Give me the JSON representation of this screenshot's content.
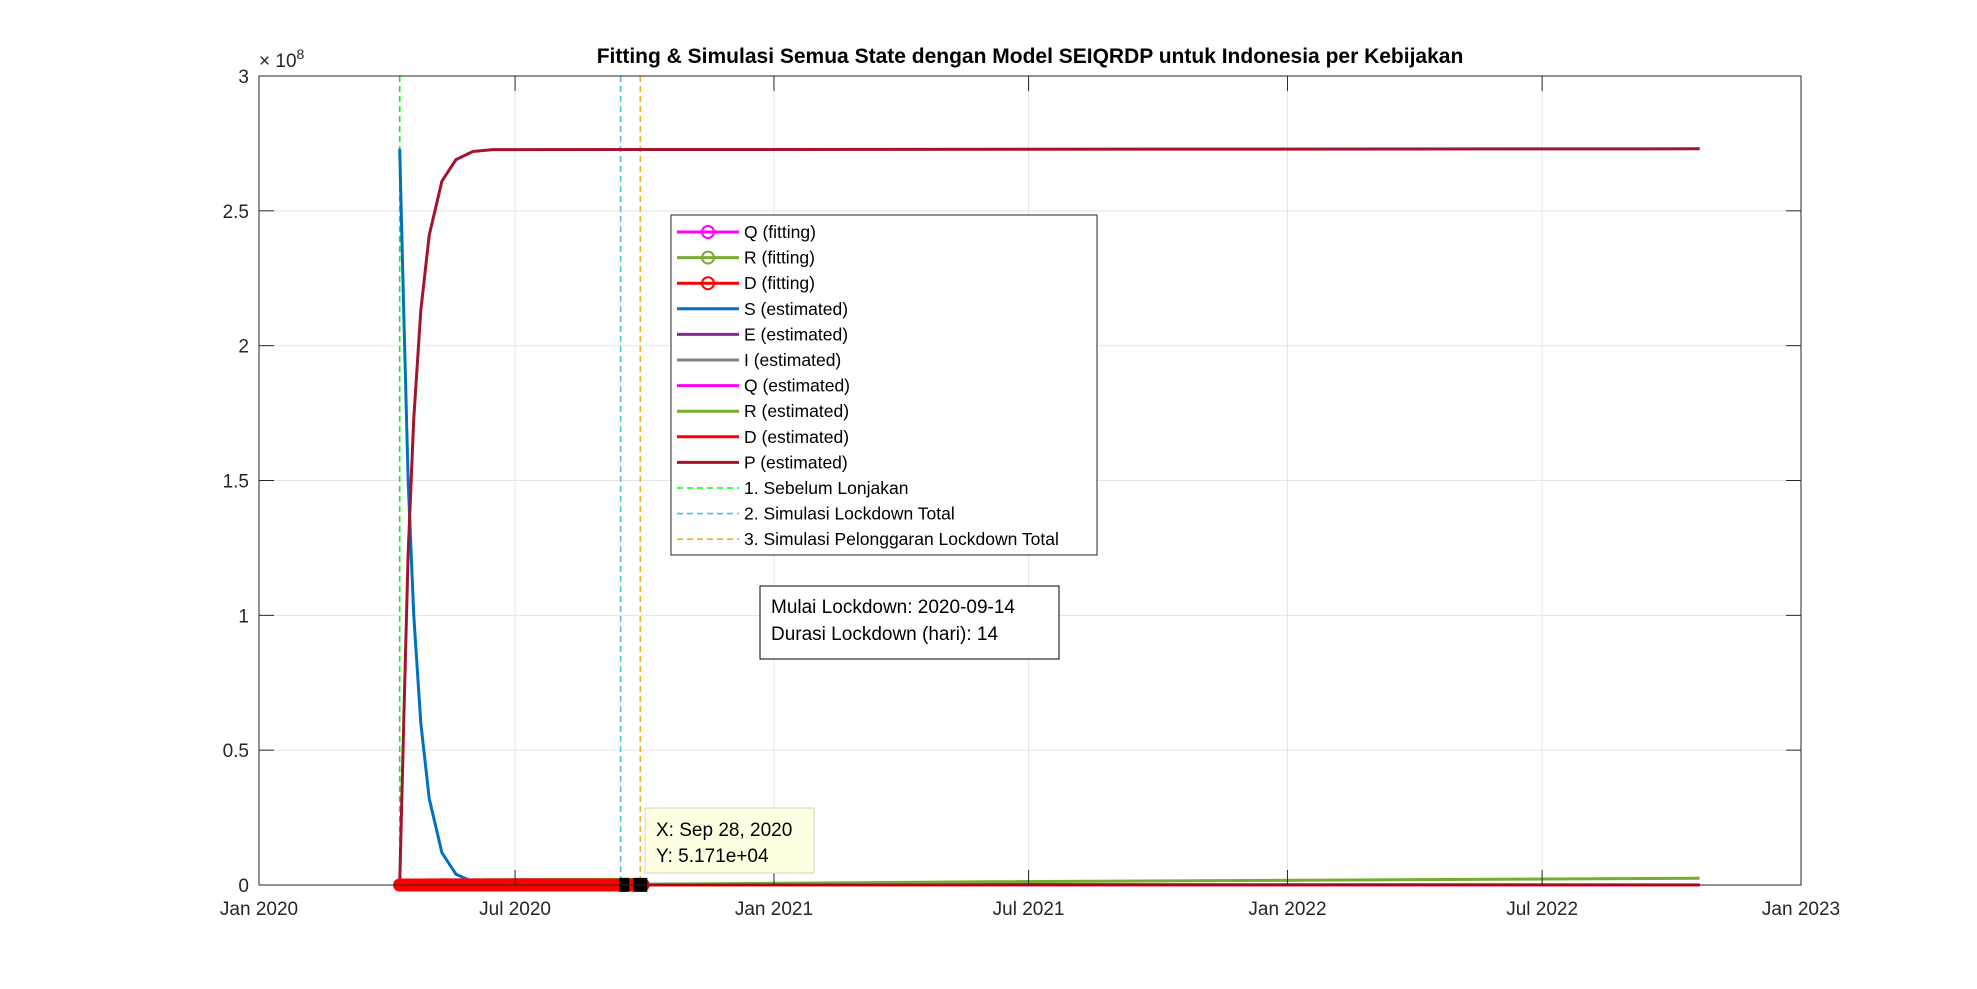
{
  "chart_data": {
    "type": "line",
    "title": "Fitting & Simulasi Semua State dengan Model SEIQRDP untuk Indonesia per Kebijakan",
    "xlabel": "",
    "ylabel": "",
    "x_axis": {
      "type": "date",
      "range": [
        "2020-01-01",
        "2023-01-01"
      ],
      "ticks": [
        "2020-01-01",
        "2020-07-01",
        "2021-01-01",
        "2021-07-01",
        "2022-01-01",
        "2022-07-01",
        "2023-01-01"
      ],
      "tick_labels": [
        "Jan 2020",
        "Jul 2020",
        "Jan 2021",
        "Jul 2021",
        "Jan 2022",
        "Jul 2022",
        "Jan 2023"
      ]
    },
    "y_axis": {
      "range": [
        0,
        300000000
      ],
      "exponent_label": "× 10",
      "exponent_power": "8",
      "ticks": [
        0,
        50000000,
        100000000,
        150000000,
        200000000,
        250000000,
        300000000
      ],
      "tick_labels": [
        "0",
        "0.5",
        "1",
        "1.5",
        "2",
        "2.5",
        "3"
      ]
    },
    "grid": true,
    "legend_position": "inside-center",
    "series": [
      {
        "name": "Q (fitting)",
        "color": "#ff00ff",
        "style": "line-marker",
        "points": [
          [
            "2020-04-10",
            0
          ],
          [
            "2020-09-30",
            150000
          ]
        ]
      },
      {
        "name": "R (fitting)",
        "color": "#77ac30",
        "style": "line-marker",
        "points": [
          [
            "2020-04-10",
            0
          ],
          [
            "2020-09-30",
            200000
          ]
        ]
      },
      {
        "name": "D (fitting)",
        "color": "#ff0000",
        "style": "line-marker",
        "points": [
          [
            "2020-04-10",
            0
          ],
          [
            "2020-09-30",
            10000
          ]
        ]
      },
      {
        "name": "S (estimated)",
        "color": "#0072bd",
        "style": "line",
        "points": [
          [
            "2020-04-10",
            273000000
          ],
          [
            "2020-04-13",
            210000000
          ],
          [
            "2020-04-16",
            150000000
          ],
          [
            "2020-04-20",
            100000000
          ],
          [
            "2020-04-25",
            60000000
          ],
          [
            "2020-05-01",
            32000000
          ],
          [
            "2020-05-10",
            12000000
          ],
          [
            "2020-05-20",
            4000000
          ],
          [
            "2020-06-01",
            1200000
          ],
          [
            "2020-06-15",
            300000
          ],
          [
            "2022-10-21",
            0
          ]
        ]
      },
      {
        "name": "E (estimated)",
        "color": "#7e2f8e",
        "style": "line",
        "points": [
          [
            "2020-04-10",
            0
          ],
          [
            "2022-10-21",
            0
          ]
        ]
      },
      {
        "name": "I (estimated)",
        "color": "#808080",
        "style": "line",
        "points": [
          [
            "2020-04-10",
            0
          ],
          [
            "2022-10-21",
            0
          ]
        ]
      },
      {
        "name": "Q (estimated)",
        "color": "#ff00ff",
        "style": "line",
        "points": [
          [
            "2020-04-10",
            0
          ],
          [
            "2022-10-21",
            0
          ]
        ]
      },
      {
        "name": "R (estimated)",
        "color": "#77ac30",
        "style": "line",
        "points": [
          [
            "2020-04-10",
            0
          ],
          [
            "2020-10-01",
            300000
          ],
          [
            "2021-06-01",
            1200000
          ],
          [
            "2022-10-21",
            2500000
          ]
        ]
      },
      {
        "name": "D (estimated)",
        "color": "#ff0000",
        "style": "line",
        "points": [
          [
            "2020-04-10",
            0
          ],
          [
            "2020-10-01",
            10000
          ],
          [
            "2022-10-21",
            60000
          ]
        ]
      },
      {
        "name": "P (estimated)",
        "color": "#a2142f",
        "style": "line",
        "points": [
          [
            "2020-04-10",
            0
          ],
          [
            "2020-04-13",
            63000000
          ],
          [
            "2020-04-16",
            123000000
          ],
          [
            "2020-04-20",
            173000000
          ],
          [
            "2020-04-25",
            213000000
          ],
          [
            "2020-05-01",
            241000000
          ],
          [
            "2020-05-10",
            261000000
          ],
          [
            "2020-05-20",
            269000000
          ],
          [
            "2020-06-01",
            272000000
          ],
          [
            "2020-06-15",
            272700000
          ],
          [
            "2022-10-21",
            273000000
          ]
        ]
      }
    ],
    "vertical_lines": [
      {
        "name": "1. Sebelum Lonjakan",
        "x": "2020-04-10",
        "color": "#00ff00"
      },
      {
        "name": "2. Simulasi Lockdown Total",
        "x": "2020-09-14",
        "color": "#4dbeee"
      },
      {
        "name": "3. Simulasi Pelonggaran Lockdown Total",
        "x": "2020-09-28",
        "color": "#edb120"
      }
    ],
    "annotation_box": {
      "lines": [
        "Mulai Lockdown: 2020-09-14",
        "Durasi Lockdown (hari): 14"
      ]
    },
    "datatip": {
      "x": "2020-09-28",
      "y": 51710,
      "x_label": "X: Sep 28, 2020",
      "y_label": "Y: 5.171e+04"
    }
  }
}
